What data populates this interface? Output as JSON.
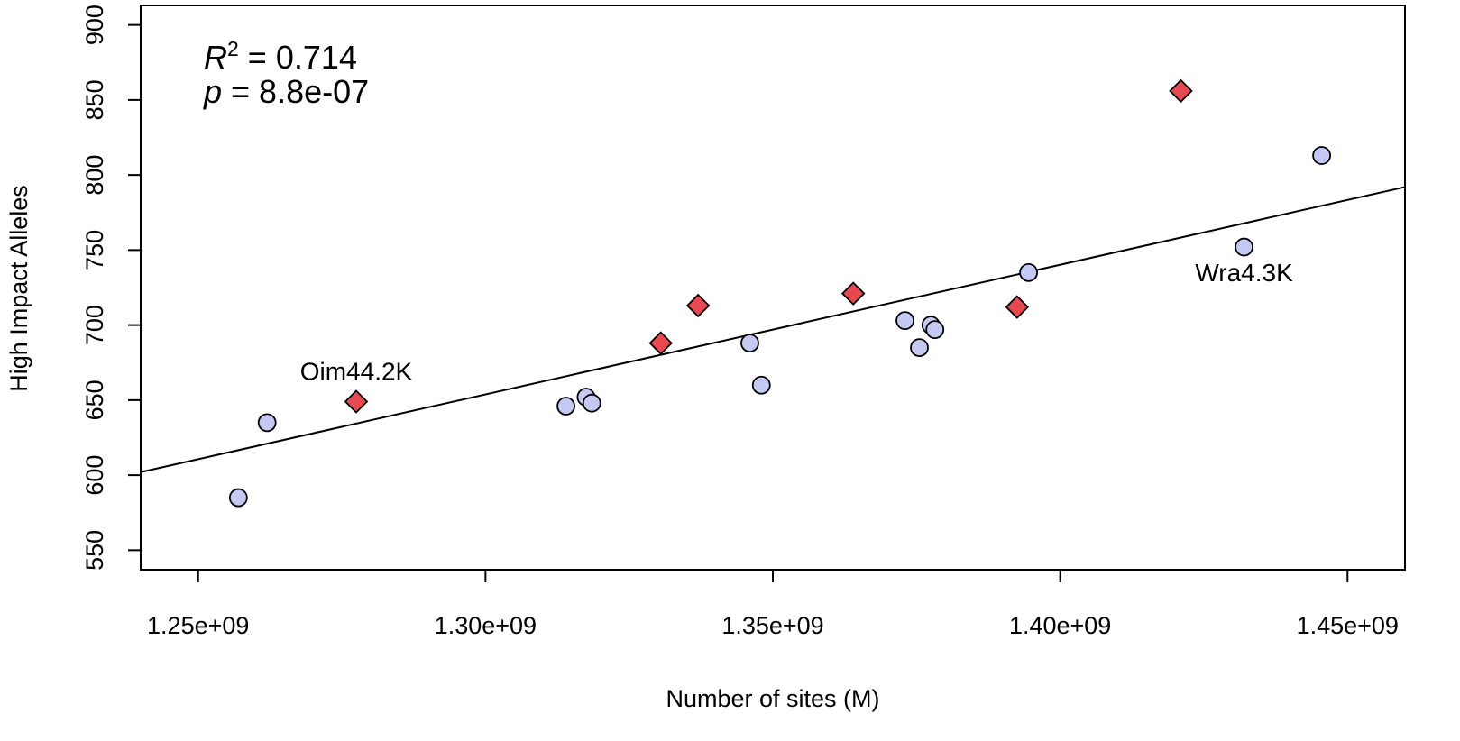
{
  "chart_data": {
    "type": "scatter",
    "title": "",
    "xlabel": "Number of sites (M)",
    "ylabel": "High Impact Alleles",
    "xlim": [
      1240000000,
      1460000000
    ],
    "ylim": [
      537,
      913
    ],
    "x_ticks": [
      1250000000,
      1300000000,
      1350000000,
      1400000000,
      1450000000
    ],
    "x_tick_labels": [
      "1.25e+09",
      "1.30e+09",
      "1.35e+09",
      "1.40e+09",
      "1.45e+09"
    ],
    "y_ticks": [
      550,
      600,
      650,
      700,
      750,
      800,
      850,
      900
    ],
    "y_tick_labels": [
      "550",
      "600",
      "650",
      "700",
      "750",
      "800",
      "850",
      "900"
    ],
    "grid": false,
    "stats": {
      "r2_symbol": "R",
      "r2_superscript": "2",
      "r2_value": " = 0.714",
      "p_symbol": "p",
      "p_value": " = 8.8e-07"
    },
    "regression_line": {
      "x": [
        1240000000,
        1460000000
      ],
      "y": [
        602,
        792
      ]
    },
    "series": [
      {
        "marker": "circle",
        "color": "#c5c8f3",
        "points": [
          {
            "x": 1257000000,
            "y": 585
          },
          {
            "x": 1262000000,
            "y": 635
          },
          {
            "x": 1314000000,
            "y": 646
          },
          {
            "x": 1317500000,
            "y": 652
          },
          {
            "x": 1318500000,
            "y": 648
          },
          {
            "x": 1346000000,
            "y": 688
          },
          {
            "x": 1348000000,
            "y": 660
          },
          {
            "x": 1373000000,
            "y": 703
          },
          {
            "x": 1375500000,
            "y": 685
          },
          {
            "x": 1377500000,
            "y": 700
          },
          {
            "x": 1378200000,
            "y": 697
          },
          {
            "x": 1394500000,
            "y": 735
          },
          {
            "x": 1432000000,
            "y": 752
          },
          {
            "x": 1445500000,
            "y": 813
          }
        ]
      },
      {
        "marker": "diamond",
        "color": "#e8484f",
        "points": [
          {
            "x": 1277500000,
            "y": 649
          },
          {
            "x": 1330500000,
            "y": 688
          },
          {
            "x": 1337000000,
            "y": 713
          },
          {
            "x": 1364000000,
            "y": 721
          },
          {
            "x": 1392500000,
            "y": 712
          },
          {
            "x": 1421000000,
            "y": 856
          }
        ]
      }
    ],
    "annotations": [
      {
        "text": "Oim44.2K",
        "x": 1277500000,
        "y": 649
      },
      {
        "text": "Wra4.3K",
        "x": 1432000000,
        "y": 752
      }
    ]
  }
}
